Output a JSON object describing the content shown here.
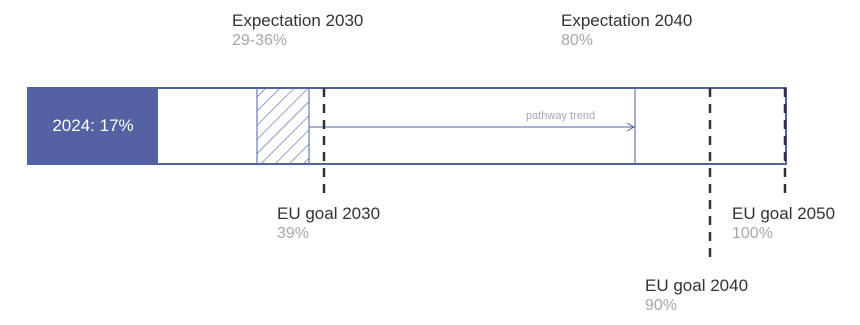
{
  "colors": {
    "current_fill": "#5262a3",
    "bar_outline": "#5262a3",
    "goal_marker": "#333333",
    "pathway_arrow": "#5262a3",
    "title_text": "#333333",
    "percent_text": "#a8a8a8"
  },
  "current": {
    "label": "2024: 17%",
    "value": 17
  },
  "expectations": [
    {
      "title": "Expectation 2030",
      "percent": "29-36%",
      "range": [
        29,
        36
      ]
    },
    {
      "title": "Expectation 2040",
      "percent": "80%",
      "value": 80
    }
  ],
  "eu_goals": [
    {
      "title": "EU goal 2030",
      "percent": "39%",
      "value": 39
    },
    {
      "title": "EU goal 2040",
      "percent": "90%",
      "value": 90
    },
    {
      "title": "EU goal 2050",
      "percent": "100%",
      "value": 100
    }
  ],
  "pathway": {
    "label": "pathway trend"
  }
}
